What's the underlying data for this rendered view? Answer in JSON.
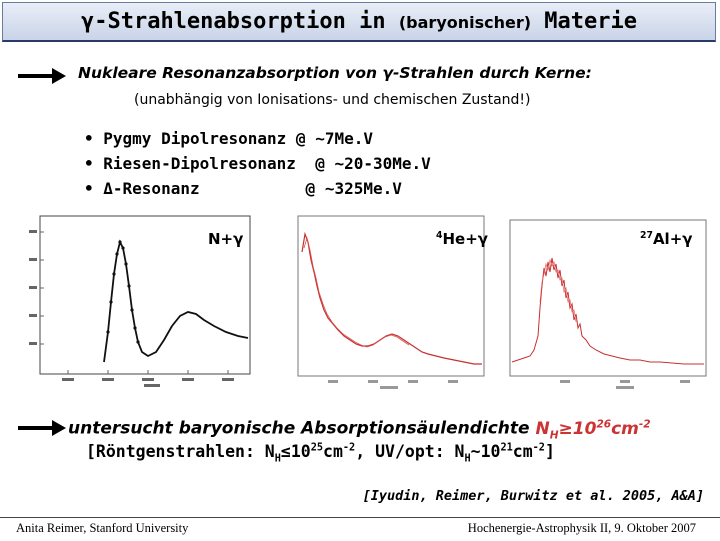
{
  "title": {
    "part1": "γ-Strahlenabsorption in ",
    "part2": "(baryonischer)",
    "part3": " Materie"
  },
  "intro": {
    "line1": "Nukleare Resonanzabsorption von γ-Strahlen durch Kerne:",
    "line2": "(unabhängig von Ionisations- und chemischen Zustand!)"
  },
  "bullets": [
    "• Pygmy Dipolresonanz @ ~7Me.V",
    "• Riesen-Dipolresonanz  @ ~20-30Me.V",
    "• Δ-Resonanz           @ ~325Me.V"
  ],
  "plots": {
    "p1": {
      "label": "N+γ"
    },
    "p2": {
      "label_sup": "4",
      "label_main": "He+γ"
    },
    "p3": {
      "label_sup": "27",
      "label_main": "Al+γ"
    }
  },
  "bottom": {
    "line1_text": "untersucht baryonische Absorptionsäulendichte ",
    "line1_nh": "N",
    "line1_sub": "H",
    "line1_val": "≥10",
    "line1_exp": "26",
    "line1_unit": "cm",
    "line1_unit_exp": "-2",
    "line2_a": "[Röntgenstrahlen: N",
    "line2_a_sub": "H",
    "line2_a_val": "≤10",
    "line2_a_exp": "25",
    "line2_a_unit": "cm",
    "line2_a_unit_exp": "-2",
    "line2_b": ",   UV/opt: N",
    "line2_b_sub": "H",
    "line2_b_val": "~10",
    "line2_b_exp": "21",
    "line2_b_unit": "cm",
    "line2_b_unit_exp": "-2",
    "line2_end": "]"
  },
  "reference": "[Iyudin, Reimer, Burwitz et al. 2005, A&A]",
  "footer": {
    "left": "Anita Reimer, Stanford University",
    "right": "Hochenergie-Astrophysik II, 9. Oktober 2007"
  },
  "colors": {
    "curve": "#c83030",
    "highlight": "#cc3333",
    "title_border": "#2a3a66"
  }
}
